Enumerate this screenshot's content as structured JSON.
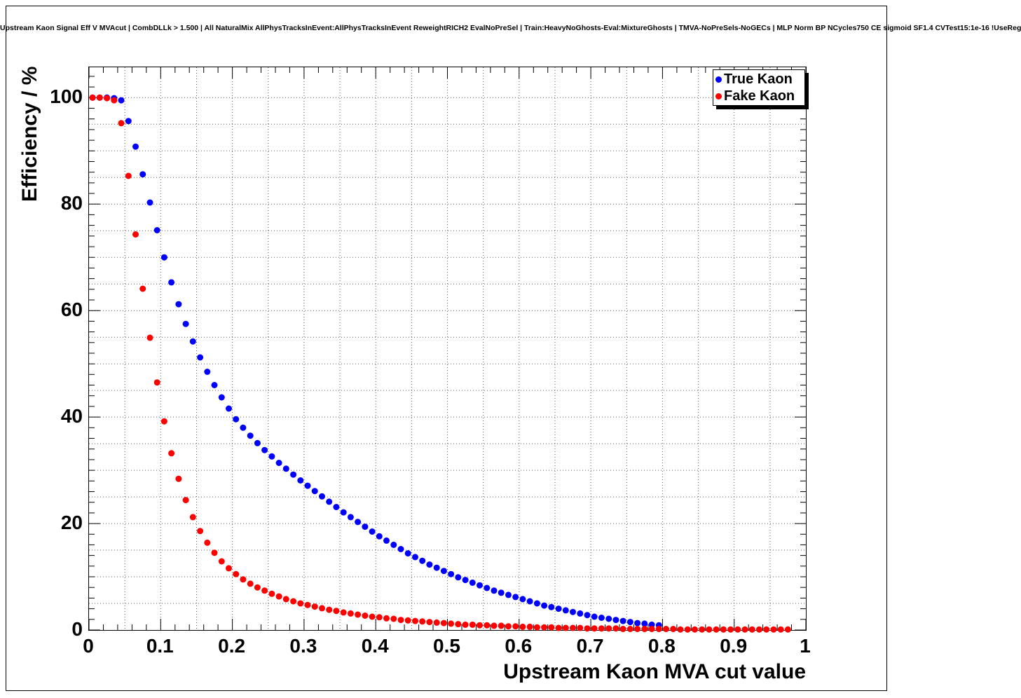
{
  "header": {
    "title": "Upstream Kaon Signal Eff V MVAcut | CombDLLk > 1.500 | All NaturalMix AllPhysTracksInEvent:AllPhysTracksInEvent ReweightRICH2 EvalNoPreSel | Train:HeavyNoGhosts-Eval:MixtureGhosts | TMVA-NoPreSels-NoGECs | MLP Norm BP NCycles750 CE sigmoid SF1.4 CVTest15:1e-16 !UseReg"
  },
  "chart_data": {
    "type": "scatter",
    "title": "Upstream Kaon Signal Eff V MVAcut | CombDLLk > 1.500 | All NaturalMix AllPhysTracksInEvent:AllPhysTracksInEvent ReweightRICH2 EvalNoPreSel | Train:HeavyNoGhosts-Eval:MixtureGhosts | TMVA-NoPreSels-NoGECs | MLP Norm BP NCycles750 CE sigmoid SF1.4 CVTest15:1e-16 !UseReg",
    "xlabel": "Upstream Kaon MVA cut value",
    "ylabel": "Efficiency / %",
    "xlim": [
      0,
      1
    ],
    "ylim": [
      0,
      105.7
    ],
    "grid": "dotted",
    "legend_position": "top-right",
    "marker": "filled-circle",
    "x_ticks": [
      {
        "v": 0,
        "label": "0"
      },
      {
        "v": 0.1,
        "label": "0.1"
      },
      {
        "v": 0.2,
        "label": "0.2"
      },
      {
        "v": 0.3,
        "label": "0.3"
      },
      {
        "v": 0.4,
        "label": "0.4"
      },
      {
        "v": 0.5,
        "label": "0.5"
      },
      {
        "v": 0.6,
        "label": "0.6"
      },
      {
        "v": 0.7,
        "label": "0.7"
      },
      {
        "v": 0.8,
        "label": "0.8"
      },
      {
        "v": 0.9,
        "label": "0.9"
      },
      {
        "v": 1,
        "label": "1"
      }
    ],
    "y_ticks": [
      {
        "v": 0,
        "label": "0"
      },
      {
        "v": 20,
        "label": "20"
      },
      {
        "v": 40,
        "label": "40"
      },
      {
        "v": 60,
        "label": "60"
      },
      {
        "v": 80,
        "label": "80"
      },
      {
        "v": 100,
        "label": "100"
      }
    ],
    "series": [
      {
        "name": "True Kaon",
        "color": "#0000ff",
        "x": [
          0.005,
          0.015,
          0.025,
          0.035,
          0.045,
          0.055,
          0.065,
          0.075,
          0.085,
          0.095,
          0.105,
          0.115,
          0.125,
          0.135,
          0.145,
          0.155,
          0.165,
          0.175,
          0.185,
          0.195,
          0.205,
          0.215,
          0.225,
          0.235,
          0.245,
          0.255,
          0.265,
          0.275,
          0.285,
          0.295,
          0.305,
          0.315,
          0.325,
          0.335,
          0.345,
          0.355,
          0.365,
          0.375,
          0.385,
          0.395,
          0.405,
          0.415,
          0.425,
          0.435,
          0.445,
          0.455,
          0.465,
          0.475,
          0.485,
          0.495,
          0.505,
          0.515,
          0.525,
          0.535,
          0.545,
          0.555,
          0.565,
          0.575,
          0.585,
          0.595,
          0.605,
          0.615,
          0.625,
          0.635,
          0.645,
          0.655,
          0.665,
          0.675,
          0.685,
          0.695,
          0.705,
          0.715,
          0.725,
          0.735,
          0.745,
          0.755,
          0.765,
          0.775,
          0.785,
          0.795
        ],
        "y": [
          100,
          100,
          100,
          99.9,
          99.5,
          95.6,
          90.8,
          85.6,
          80.3,
          75.1,
          70,
          65.3,
          61.2,
          57.5,
          54.2,
          51.2,
          48.5,
          46,
          43.7,
          41.6,
          39.6,
          38,
          36.5,
          35.1,
          33.8,
          32.6,
          31.4,
          30.3,
          29.2,
          28.1,
          27.1,
          26.1,
          25.1,
          24.1,
          23.1,
          22.1,
          21.2,
          20.3,
          19.4,
          18.5,
          17.6,
          16.8,
          16,
          15.2,
          14.4,
          13.7,
          13,
          12.3,
          11.7,
          11.1,
          10.5,
          9.9,
          9.4,
          8.9,
          8.4,
          7.9,
          7.4,
          7,
          6.6,
          6.2,
          5.8,
          5.4,
          5,
          4.6,
          4.3,
          4,
          3.7,
          3.4,
          3.1,
          2.8,
          2.5,
          2.3,
          2.1,
          1.9,
          1.7,
          1.5,
          1.3,
          1.2,
          1,
          0.9
        ]
      },
      {
        "name": "Fake Kaon",
        "color": "#ff0000",
        "x": [
          0.005,
          0.015,
          0.025,
          0.035,
          0.045,
          0.055,
          0.065,
          0.075,
          0.085,
          0.095,
          0.105,
          0.115,
          0.125,
          0.135,
          0.145,
          0.155,
          0.165,
          0.175,
          0.185,
          0.195,
          0.205,
          0.215,
          0.225,
          0.235,
          0.245,
          0.255,
          0.265,
          0.275,
          0.285,
          0.295,
          0.305,
          0.315,
          0.325,
          0.335,
          0.345,
          0.355,
          0.365,
          0.375,
          0.385,
          0.395,
          0.405,
          0.415,
          0.425,
          0.435,
          0.445,
          0.455,
          0.465,
          0.475,
          0.485,
          0.495,
          0.505,
          0.515,
          0.525,
          0.535,
          0.545,
          0.555,
          0.565,
          0.575,
          0.585,
          0.595,
          0.605,
          0.615,
          0.625,
          0.635,
          0.645,
          0.655,
          0.665,
          0.675,
          0.685,
          0.695,
          0.705,
          0.715,
          0.725,
          0.735,
          0.745,
          0.755,
          0.765,
          0.775,
          0.785,
          0.795,
          0.805,
          0.815,
          0.825,
          0.835,
          0.845,
          0.855,
          0.865,
          0.875,
          0.885,
          0.895,
          0.905,
          0.915,
          0.925,
          0.935,
          0.945,
          0.955,
          0.965,
          0.975
        ],
        "y": [
          100,
          100,
          99.9,
          99.5,
          95.2,
          85.3,
          74.3,
          64.1,
          54.9,
          46.5,
          39.2,
          33.2,
          28.4,
          24.4,
          21.2,
          18.6,
          16.4,
          14.5,
          12.9,
          11.6,
          10.5,
          9.5,
          8.7,
          8,
          7.4,
          6.8,
          6.3,
          5.8,
          5.4,
          5,
          4.7,
          4.4,
          4.1,
          3.8,
          3.6,
          3.3,
          3.1,
          2.9,
          2.7,
          2.5,
          2.4,
          2.2,
          2.1,
          1.9,
          1.8,
          1.7,
          1.6,
          1.5,
          1.4,
          1.3,
          1.2,
          1.1,
          1,
          1,
          0.9,
          0.9,
          0.8,
          0.8,
          0.7,
          0.7,
          0.6,
          0.6,
          0.5,
          0.5,
          0.5,
          0.4,
          0.4,
          0.4,
          0.4,
          0.3,
          0.3,
          0.3,
          0.3,
          0.3,
          0.2,
          0.2,
          0.2,
          0.2,
          0.2,
          0.2,
          0.2,
          0.2,
          0.1,
          0.1,
          0.1,
          0.1,
          0.1,
          0.1,
          0.1,
          0.1,
          0.1,
          0.1,
          0.1,
          0.1,
          0.1,
          0.1,
          0.1,
          0.1
        ]
      }
    ]
  }
}
